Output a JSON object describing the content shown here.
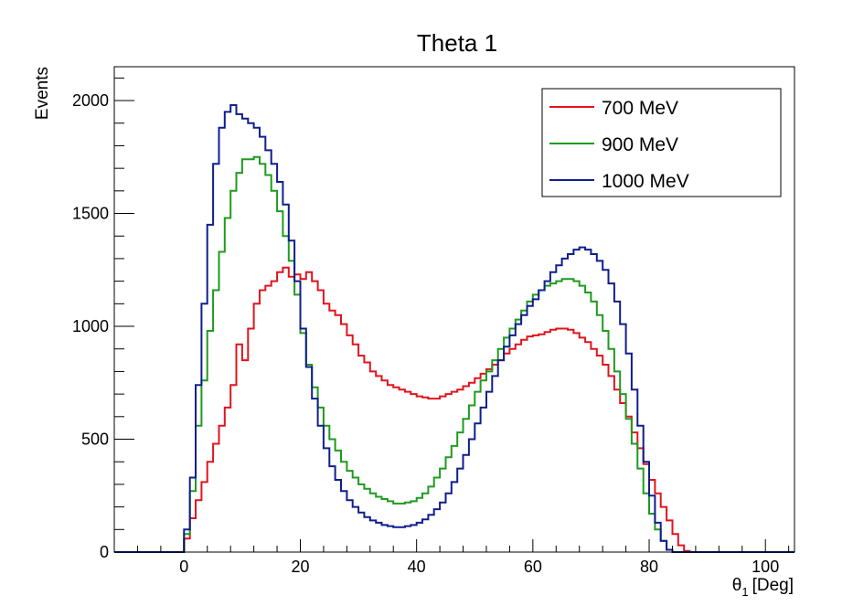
{
  "chart_data": {
    "type": "line",
    "style": "step-histogram",
    "title": "Theta 1",
    "xlabel_symbol": "θ",
    "xlabel_sub": "1",
    "xlabel_unit": "[Deg]",
    "ylabel": "Events",
    "xlim": [
      -12,
      105
    ],
    "ylim": [
      0,
      2150
    ],
    "x_ticks": [
      0,
      20,
      40,
      60,
      80,
      100
    ],
    "y_ticks": [
      0,
      500,
      1000,
      1500,
      2000
    ],
    "grid": false,
    "legend_position": "top-right",
    "bin_width": 1,
    "bins_start": 0,
    "series": [
      {
        "name": "700 MeV",
        "color": "#e0141e",
        "values": [
          60,
          150,
          230,
          310,
          400,
          480,
          560,
          640,
          740,
          920,
          850,
          990,
          1100,
          1160,
          1180,
          1200,
          1240,
          1260,
          1220,
          1230,
          1210,
          1240,
          1200,
          1160,
          1100,
          1070,
          1050,
          1010,
          960,
          920,
          870,
          840,
          800,
          780,
          760,
          740,
          730,
          720,
          710,
          700,
          690,
          685,
          680,
          680,
          690,
          700,
          710,
          720,
          735,
          750,
          770,
          790,
          810,
          830,
          850,
          880,
          900,
          920,
          940,
          955,
          960,
          965,
          975,
          985,
          990,
          990,
          985,
          970,
          950,
          930,
          900,
          870,
          830,
          780,
          720,
          660,
          600,
          530,
          460,
          390,
          320,
          260,
          200,
          140,
          80,
          30,
          5,
          0,
          0,
          0,
          0,
          0,
          0,
          0,
          0,
          0,
          0,
          0,
          0,
          0,
          0
        ]
      },
      {
        "name": "900 MeV",
        "color": "#1e9b1e",
        "values": [
          80,
          270,
          560,
          760,
          980,
          1160,
          1330,
          1480,
          1600,
          1680,
          1740,
          1740,
          1750,
          1720,
          1670,
          1600,
          1510,
          1400,
          1290,
          1140,
          970,
          830,
          730,
          640,
          560,
          500,
          450,
          400,
          360,
          330,
          300,
          280,
          260,
          245,
          235,
          225,
          215,
          215,
          220,
          225,
          240,
          260,
          290,
          330,
          370,
          420,
          470,
          530,
          590,
          650,
          710,
          760,
          800,
          850,
          900,
          950,
          990,
          1030,
          1070,
          1110,
          1140,
          1160,
          1180,
          1190,
          1200,
          1210,
          1210,
          1200,
          1180,
          1150,
          1110,
          1050,
          980,
          900,
          800,
          700,
          590,
          480,
          370,
          260,
          170,
          100,
          50,
          10,
          0,
          0,
          0,
          0,
          0,
          0,
          0,
          0,
          0,
          0,
          0,
          0,
          0,
          0
        ]
      },
      {
        "name": "1000 MeV",
        "color": "#0f1e8c",
        "values": [
          100,
          330,
          740,
          1100,
          1450,
          1720,
          1880,
          1950,
          1980,
          1940,
          1920,
          1900,
          1880,
          1840,
          1780,
          1720,
          1640,
          1540,
          1380,
          1200,
          990,
          820,
          680,
          560,
          460,
          380,
          320,
          270,
          230,
          200,
          175,
          155,
          140,
          130,
          120,
          115,
          110,
          110,
          115,
          120,
          130,
          145,
          165,
          190,
          220,
          260,
          310,
          370,
          430,
          500,
          570,
          640,
          710,
          780,
          850,
          910,
          960,
          1010,
          1050,
          1090,
          1120,
          1160,
          1200,
          1240,
          1270,
          1300,
          1320,
          1340,
          1350,
          1340,
          1320,
          1290,
          1250,
          1190,
          1110,
          1010,
          880,
          720,
          560,
          400,
          250,
          130,
          50,
          10,
          0,
          0,
          0,
          0,
          0,
          0,
          0,
          0,
          0,
          0,
          0,
          0,
          0,
          0
        ]
      }
    ]
  }
}
